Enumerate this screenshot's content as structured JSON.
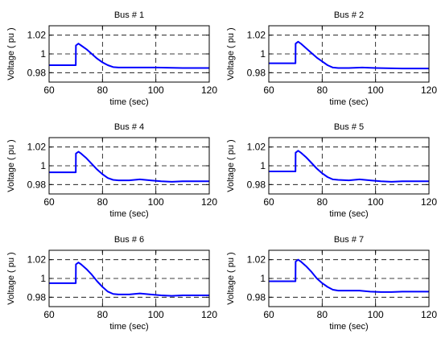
{
  "chart_data": [
    {
      "type": "line",
      "title": "Bus # 1",
      "xlabel": "time (sec)",
      "ylabel": "Voltage ( pu )",
      "xlim": [
        60,
        120
      ],
      "ylim": [
        0.97,
        1.03
      ],
      "xticks": [
        60,
        80,
        100,
        120
      ],
      "yticks": [
        0.98,
        1,
        1.02
      ],
      "xtick_labels": [
        "60",
        "80",
        "100",
        "120"
      ],
      "ytick_labels": [
        "0.98",
        "1",
        "1.02"
      ],
      "grid": true,
      "series": [
        {
          "color": "#0000ff",
          "x": [
            60,
            70,
            70.05,
            71,
            72,
            74,
            76,
            78,
            80,
            82,
            84,
            86,
            90,
            95,
            100,
            110,
            120
          ],
          "y": [
            0.988,
            0.988,
            1.009,
            1.011,
            1.009,
            1.005,
            1.0,
            0.995,
            0.991,
            0.988,
            0.986,
            0.9855,
            0.9855,
            0.9855,
            0.9855,
            0.985,
            0.985
          ]
        }
      ]
    },
    {
      "type": "line",
      "title": "Bus # 2",
      "xlabel": "time (sec)",
      "ylabel": "Voltage ( pu )",
      "xlim": [
        60,
        120
      ],
      "ylim": [
        0.97,
        1.03
      ],
      "xticks": [
        60,
        80,
        100,
        120
      ],
      "yticks": [
        0.98,
        1,
        1.02
      ],
      "xtick_labels": [
        "60",
        "80",
        "100",
        "120"
      ],
      "ytick_labels": [
        "0.98",
        "1",
        "1.02"
      ],
      "grid": true,
      "series": [
        {
          "color": "#0000ff",
          "x": [
            60,
            70,
            70.05,
            71,
            72,
            74,
            76,
            78,
            80,
            82,
            84,
            86,
            90,
            95,
            100,
            110,
            120
          ],
          "y": [
            0.99,
            0.99,
            1.011,
            1.013,
            1.011,
            1.006,
            1.001,
            0.996,
            0.992,
            0.988,
            0.9855,
            0.985,
            0.985,
            0.9855,
            0.985,
            0.9845,
            0.9845
          ]
        }
      ]
    },
    {
      "type": "line",
      "title": "Bus # 4",
      "xlabel": "time (sec)",
      "ylabel": "Voltage ( pu )",
      "xlim": [
        60,
        120
      ],
      "ylim": [
        0.97,
        1.03
      ],
      "xticks": [
        60,
        80,
        100,
        120
      ],
      "yticks": [
        0.98,
        1,
        1.02
      ],
      "xtick_labels": [
        "60",
        "80",
        "100",
        "120"
      ],
      "ytick_labels": [
        "0.98",
        "1",
        "1.02"
      ],
      "grid": true,
      "series": [
        {
          "color": "#0000ff",
          "x": [
            60,
            70,
            70.05,
            71,
            72,
            74,
            76,
            78,
            80,
            82,
            84,
            86,
            90,
            94,
            98,
            102,
            106,
            110,
            120
          ],
          "y": [
            0.993,
            0.993,
            1.013,
            1.015,
            1.013,
            1.008,
            1.002,
            0.996,
            0.991,
            0.987,
            0.985,
            0.9845,
            0.9845,
            0.9855,
            0.9845,
            0.9835,
            0.983,
            0.9835,
            0.9835
          ]
        }
      ]
    },
    {
      "type": "line",
      "title": "Bus # 5",
      "xlabel": "time (sec)",
      "ylabel": "Voltage ( pu )",
      "xlim": [
        60,
        120
      ],
      "ylim": [
        0.97,
        1.03
      ],
      "xticks": [
        60,
        80,
        100,
        120
      ],
      "yticks": [
        0.98,
        1,
        1.02
      ],
      "xtick_labels": [
        "60",
        "80",
        "100",
        "120"
      ],
      "ytick_labels": [
        "0.98",
        "1",
        "1.02"
      ],
      "grid": true,
      "series": [
        {
          "color": "#0000ff",
          "x": [
            60,
            70,
            70.05,
            71,
            72,
            74,
            76,
            78,
            80,
            82,
            84,
            86,
            90,
            94,
            98,
            102,
            106,
            110,
            120
          ],
          "y": [
            0.994,
            0.994,
            1.014,
            1.016,
            1.014,
            1.009,
            1.003,
            0.997,
            0.992,
            0.988,
            0.9855,
            0.985,
            0.9845,
            0.9855,
            0.9845,
            0.9835,
            0.983,
            0.9835,
            0.9835
          ]
        }
      ]
    },
    {
      "type": "line",
      "title": "Bus # 6",
      "xlabel": "time (sec)",
      "ylabel": "Voltage ( pu )",
      "xlim": [
        60,
        120
      ],
      "ylim": [
        0.97,
        1.03
      ],
      "xticks": [
        60,
        80,
        100,
        120
      ],
      "yticks": [
        0.98,
        1,
        1.02
      ],
      "xtick_labels": [
        "60",
        "80",
        "100",
        "120"
      ],
      "ytick_labels": [
        "0.98",
        "1",
        "1.02"
      ],
      "grid": true,
      "series": [
        {
          "color": "#0000ff",
          "x": [
            60,
            70,
            70.05,
            71,
            72,
            74,
            76,
            78,
            80,
            82,
            84,
            86,
            90,
            94,
            98,
            102,
            106,
            110,
            120
          ],
          "y": [
            0.995,
            0.995,
            1.015,
            1.017,
            1.015,
            1.01,
            1.004,
            0.997,
            0.991,
            0.986,
            0.9835,
            0.983,
            0.983,
            0.984,
            0.983,
            0.982,
            0.9815,
            0.982,
            0.982
          ]
        }
      ]
    },
    {
      "type": "line",
      "title": "Bus # 7",
      "xlabel": "time (sec)",
      "ylabel": "Voltage ( pu )",
      "xlim": [
        60,
        120
      ],
      "ylim": [
        0.97,
        1.03
      ],
      "xticks": [
        60,
        80,
        100,
        120
      ],
      "yticks": [
        0.98,
        1,
        1.02
      ],
      "xtick_labels": [
        "60",
        "80",
        "100",
        "120"
      ],
      "ytick_labels": [
        "0.98",
        "1",
        "1.02"
      ],
      "grid": true,
      "series": [
        {
          "color": "#0000ff",
          "x": [
            60,
            70,
            70.05,
            71,
            72,
            74,
            76,
            78,
            80,
            82,
            84,
            86,
            90,
            94,
            98,
            102,
            106,
            110,
            120
          ],
          "y": [
            0.997,
            0.997,
            1.018,
            1.02,
            1.018,
            1.013,
            1.007,
            1.0,
            0.995,
            0.991,
            0.988,
            0.987,
            0.987,
            0.987,
            0.986,
            0.9855,
            0.9855,
            0.986,
            0.986
          ]
        }
      ]
    }
  ]
}
